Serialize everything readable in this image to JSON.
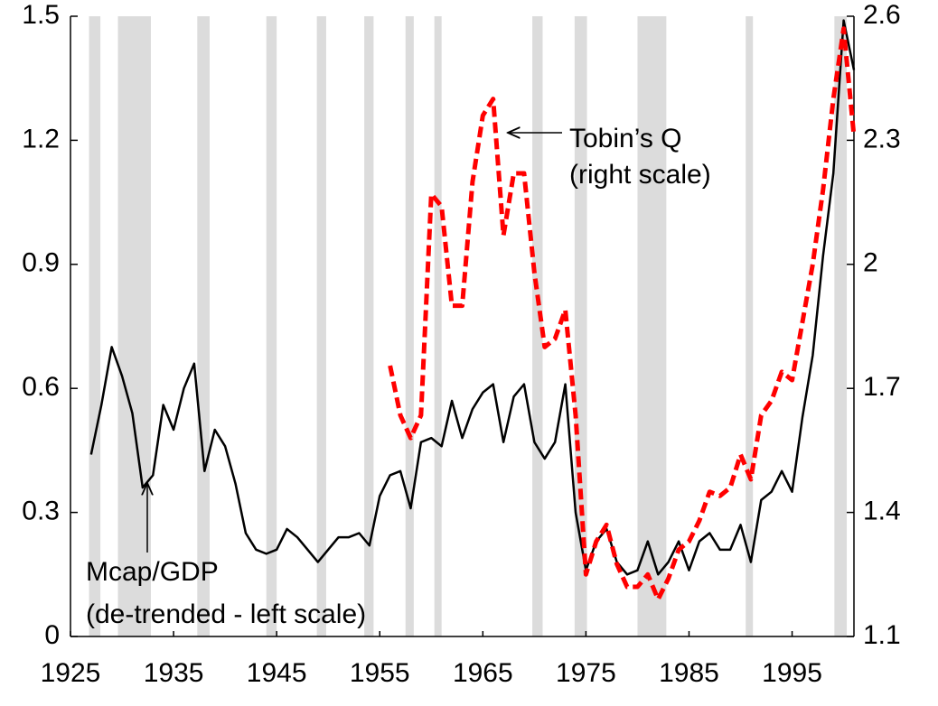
{
  "chart_data": {
    "type": "line",
    "annotations": [
      "Tobin’s Q",
      "(right scale)",
      "Mcap/GDP",
      "(de-trended - left scale)"
    ],
    "x": [
      1927,
      1928,
      1929,
      1930,
      1931,
      1932,
      1933,
      1934,
      1935,
      1936,
      1937,
      1938,
      1939,
      1940,
      1941,
      1942,
      1943,
      1944,
      1945,
      1946,
      1947,
      1948,
      1949,
      1950,
      1951,
      1952,
      1953,
      1954,
      1955,
      1956,
      1957,
      1958,
      1959,
      1960,
      1961,
      1962,
      1963,
      1964,
      1965,
      1966,
      1967,
      1968,
      1969,
      1970,
      1971,
      1972,
      1973,
      1974,
      1975,
      1976,
      1977,
      1978,
      1979,
      1980,
      1981,
      1982,
      1983,
      1984,
      1985,
      1986,
      1987,
      1988,
      1989,
      1990,
      1991,
      1992,
      1993,
      1994,
      1995,
      1996,
      1997,
      1998,
      1999,
      2000,
      2001
    ],
    "series": [
      {
        "name": "Mcap/GDP",
        "color": "#000000",
        "axis": "y",
        "dashed": false,
        "values": [
          0.44,
          0.56,
          0.7,
          0.63,
          0.54,
          0.36,
          0.39,
          0.56,
          0.5,
          0.6,
          0.66,
          0.4,
          0.5,
          0.46,
          0.37,
          0.25,
          0.21,
          0.2,
          0.21,
          0.26,
          0.24,
          0.21,
          0.18,
          0.21,
          0.24,
          0.24,
          0.25,
          0.22,
          0.34,
          0.39,
          0.4,
          0.31,
          0.47,
          0.48,
          0.46,
          0.57,
          0.48,
          0.55,
          0.59,
          0.61,
          0.47,
          0.58,
          0.61,
          0.47,
          0.43,
          0.47,
          0.61,
          0.3,
          0.16,
          0.23,
          0.26,
          0.18,
          0.15,
          0.16,
          0.23,
          0.15,
          0.18,
          0.23,
          0.16,
          0.23,
          0.25,
          0.21,
          0.21,
          0.27,
          0.18,
          0.33,
          0.35,
          0.4,
          0.35,
          0.53,
          0.68,
          0.92,
          1.12,
          1.49,
          1.37
        ]
      },
      {
        "name": "Tobin’s Q",
        "color": "#ff0000",
        "axis": "y2",
        "dashed": true,
        "values": [
          null,
          null,
          null,
          null,
          null,
          null,
          null,
          null,
          null,
          null,
          null,
          null,
          null,
          null,
          null,
          null,
          null,
          null,
          null,
          null,
          null,
          null,
          null,
          null,
          null,
          null,
          null,
          null,
          null,
          1.755,
          1.635,
          1.58,
          1.635,
          2.17,
          2.14,
          1.9,
          1.9,
          2.2,
          2.36,
          2.4,
          2.07,
          2.22,
          2.22,
          1.98,
          1.8,
          1.82,
          1.89,
          1.635,
          1.25,
          1.33,
          1.37,
          1.275,
          1.22,
          1.22,
          1.25,
          1.19,
          1.24,
          1.31,
          1.33,
          1.38,
          1.45,
          1.44,
          1.46,
          1.54,
          1.48,
          1.635,
          1.67,
          1.74,
          1.72,
          1.86,
          2.0,
          2.18,
          2.4,
          2.57,
          2.31
        ]
      }
    ],
    "shaded_periods": [
      [
        1926.8,
        1927.9
      ],
      [
        1929.6,
        1932.8
      ],
      [
        1937.3,
        1938.5
      ],
      [
        1944.0,
        1945.0
      ],
      [
        1948.9,
        1949.8
      ],
      [
        1953.5,
        1954.4
      ],
      [
        1957.5,
        1958.3
      ],
      [
        1960.3,
        1961.0
      ],
      [
        1969.8,
        1970.8
      ],
      [
        1973.9,
        1975.1
      ],
      [
        1980.0,
        1982.8
      ],
      [
        1990.5,
        1991.2
      ],
      [
        1999.1,
        2000.3
      ]
    ],
    "shade_color": "#dcdcdc",
    "xlim": [
      1925,
      2001
    ],
    "xticks": [
      1925,
      1935,
      1945,
      1955,
      1965,
      1975,
      1985,
      1995
    ],
    "ylim": [
      0,
      1.5
    ],
    "yticks": [
      0,
      0.3,
      0.6,
      0.9,
      1.2,
      1.5
    ],
    "y2lim": [
      1.1,
      2.6
    ],
    "y2ticks": [
      1.1,
      1.4,
      1.7,
      2,
      2.3,
      2.6
    ]
  }
}
